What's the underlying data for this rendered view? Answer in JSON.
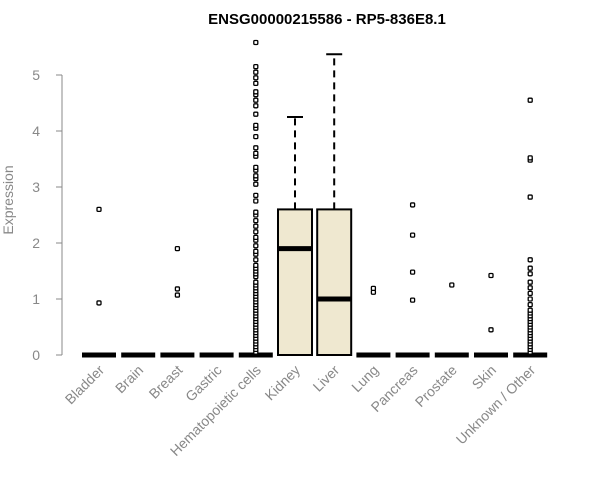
{
  "chart_data": {
    "type": "boxplot",
    "title": "ENSG00000215586 - RP5-836E8.1",
    "ylabel": "Expression",
    "xlabel": "",
    "ylim": [
      0,
      5.6
    ],
    "yticks": [
      "0",
      "1",
      "2",
      "3",
      "4",
      "5"
    ],
    "categories": [
      "Bladder",
      "Brain",
      "Breast",
      "Gastric",
      "Hematopoietic cells",
      "Kidney",
      "Liver",
      "Lung",
      "Pancreas",
      "Prostate",
      "Skin",
      "Unknown / Other"
    ],
    "box_color": "#efe8d0",
    "grid": false,
    "series": [
      {
        "category": "Bladder",
        "min": 0,
        "q1": 0,
        "median": 0,
        "q3": 0,
        "max": 0,
        "outliers": [
          0.93,
          2.6
        ]
      },
      {
        "category": "Brain",
        "min": 0,
        "q1": 0,
        "median": 0,
        "q3": 0,
        "max": 0,
        "outliers": []
      },
      {
        "category": "Breast",
        "min": 0,
        "q1": 0,
        "median": 0,
        "q3": 0,
        "max": 0,
        "outliers": [
          1.07,
          1.18,
          1.9
        ]
      },
      {
        "category": "Gastric",
        "min": 0,
        "q1": 0,
        "median": 0,
        "q3": 0,
        "max": 0,
        "outliers": []
      },
      {
        "category": "Hematopoietic cells",
        "min": 0,
        "q1": 0,
        "median": 0,
        "q3": 0,
        "max": 0,
        "outliers": [
          0.05,
          0.1,
          0.15,
          0.2,
          0.25,
          0.3,
          0.35,
          0.4,
          0.45,
          0.5,
          0.55,
          0.6,
          0.65,
          0.7,
          0.75,
          0.8,
          0.85,
          0.9,
          0.95,
          1.0,
          1.05,
          1.1,
          1.15,
          1.2,
          1.25,
          1.3,
          1.4,
          1.45,
          1.5,
          1.55,
          1.6,
          1.7,
          1.8,
          1.85,
          1.95,
          2.05,
          2.1,
          2.2,
          2.3,
          2.4,
          2.5,
          2.55,
          2.75,
          2.85,
          3.05,
          3.15,
          3.2,
          3.3,
          3.35,
          3.55,
          3.6,
          3.7,
          3.9,
          4.05,
          4.1,
          4.3,
          4.45,
          4.55,
          4.65,
          4.7,
          4.85,
          4.95,
          5.05,
          5.15,
          5.58
        ]
      },
      {
        "category": "Kidney",
        "min": 0,
        "q1": 0,
        "median": 1.9,
        "q3": 2.6,
        "max": 4.25,
        "outliers": []
      },
      {
        "category": "Liver",
        "min": 0,
        "q1": 0,
        "median": 1.0,
        "q3": 2.6,
        "max": 5.37,
        "outliers": []
      },
      {
        "category": "Lung",
        "min": 0,
        "q1": 0,
        "median": 0,
        "q3": 0,
        "max": 0,
        "outliers": [
          1.12,
          1.19
        ]
      },
      {
        "category": "Pancreas",
        "min": 0,
        "q1": 0,
        "median": 0,
        "q3": 0,
        "max": 0,
        "outliers": [
          0.98,
          1.48,
          2.14,
          2.68
        ]
      },
      {
        "category": "Prostate",
        "min": 0,
        "q1": 0,
        "median": 0,
        "q3": 0,
        "max": 0,
        "outliers": [
          1.25
        ]
      },
      {
        "category": "Skin",
        "min": 0,
        "q1": 0,
        "median": 0,
        "q3": 0,
        "max": 0,
        "outliers": [
          0.45,
          1.42
        ]
      },
      {
        "category": "Unknown / Other",
        "min": 0,
        "q1": 0,
        "median": 0,
        "q3": 0,
        "max": 0,
        "outliers": [
          0.05,
          0.1,
          0.15,
          0.2,
          0.25,
          0.3,
          0.35,
          0.4,
          0.45,
          0.5,
          0.55,
          0.6,
          0.65,
          0.7,
          0.75,
          0.8,
          0.9,
          1.0,
          1.1,
          1.2,
          1.3,
          1.45,
          1.55,
          1.7,
          2.82,
          3.48,
          3.52,
          4.55
        ]
      }
    ]
  }
}
